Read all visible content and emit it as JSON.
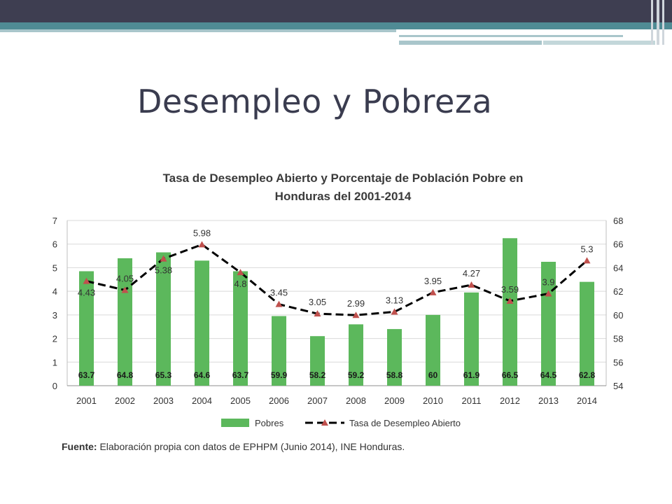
{
  "slide": {
    "title": "Desempleo y Pobreza"
  },
  "chart_title_line1": "Tasa de Desempleo Abierto  y Porcentaje de Población Pobre en",
  "chart_title_line2": "Honduras del  2001-2014",
  "source_label": "Fuente:",
  "source_text": " Elaboración propia con datos de EPHPM (Junio 2014), INE Honduras.",
  "colors": {
    "bar": "#5cb85c",
    "line": "#000000",
    "marker": "#c0504d",
    "header": "#3e3e51",
    "accent": "#4f8b94"
  },
  "chart_data": {
    "type": "bar",
    "title": "Tasa de Desempleo Abierto  y Porcentaje de Población Pobre en Honduras del  2001-2014",
    "categories": [
      "2001",
      "2002",
      "2003",
      "2004",
      "2005",
      "2006",
      "2007",
      "2008",
      "2009",
      "2010",
      "2011",
      "2012",
      "2013",
      "2014"
    ],
    "series": [
      {
        "name": "Pobres",
        "type": "bar",
        "axis": "right",
        "values": [
          63.7,
          64.8,
          65.3,
          64.6,
          63.7,
          59.9,
          58.2,
          59.2,
          58.8,
          60,
          61.9,
          66.5,
          64.5,
          62.8
        ]
      },
      {
        "name": "Tasa de Desempleo Abierto",
        "type": "line",
        "axis": "left",
        "style": "dashed",
        "marker": "triangle",
        "values": [
          4.43,
          4.05,
          5.38,
          5.98,
          4.8,
          3.45,
          3.05,
          2.99,
          3.13,
          3.95,
          4.27,
          3.59,
          3.9,
          5.3
        ]
      }
    ],
    "y_left": {
      "range": [
        0,
        7
      ],
      "ticks": [
        0,
        1,
        2,
        3,
        4,
        5,
        6,
        7
      ]
    },
    "y_right": {
      "range": [
        54,
        68
      ],
      "ticks": [
        54,
        56,
        58,
        60,
        62,
        64,
        66,
        68
      ]
    },
    "grid": true,
    "legend": "bottom"
  }
}
